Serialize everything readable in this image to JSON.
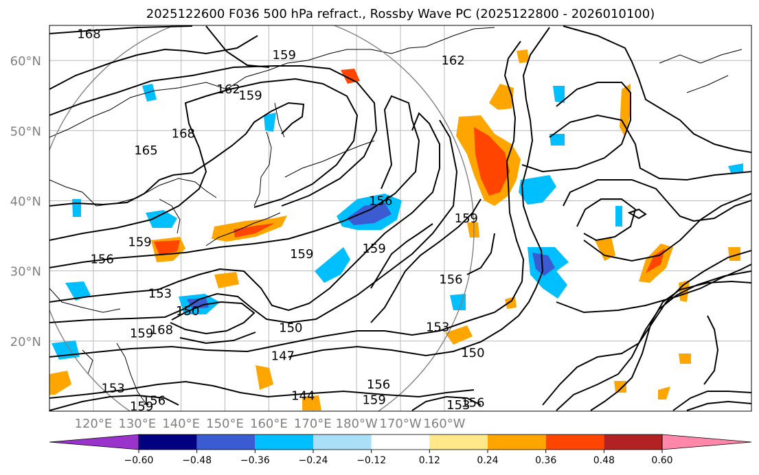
{
  "chart_data": {
    "type": "map-contour",
    "title": "2025122600 F036 500 hPa refract., Rossby Wave PC (2025122800 - 2026010100)",
    "lon_range": [
      110,
      270
    ],
    "lat_range": [
      10,
      65
    ],
    "lat_ticks": [
      {
        "value": 20,
        "label": "20°N"
      },
      {
        "value": 30,
        "label": "30°N"
      },
      {
        "value": 40,
        "label": "40°N"
      },
      {
        "value": 50,
        "label": "50°N"
      },
      {
        "value": 60,
        "label": "60°N"
      }
    ],
    "lon_ticks": [
      {
        "value": 120,
        "label": "120°E"
      },
      {
        "value": 130,
        "label": "130°E"
      },
      {
        "value": 140,
        "label": "140°E"
      },
      {
        "value": 150,
        "label": "150°E"
      },
      {
        "value": 160,
        "label": "160°E"
      },
      {
        "value": 170,
        "label": "170°E"
      },
      {
        "value": 180,
        "label": "180°W"
      },
      {
        "value": 190,
        "label": "170°W"
      },
      {
        "value": 200,
        "label": "160°W"
      }
    ],
    "grid": true,
    "colorbar": {
      "levels": [
        "−0.60",
        "−0.48",
        "−0.36",
        "−0.24",
        "−0.12",
        "0.12",
        "0.24",
        "0.36",
        "0.48",
        "0.60"
      ],
      "colors": [
        "#9933cc",
        "#000080",
        "#3a5bd1",
        "#00bfff",
        "#aadff8",
        "#ffffff",
        "#ffe88a",
        "#ffa500",
        "#ff4500",
        "#b22222",
        "#ff88aa"
      ]
    },
    "contour_labels": [
      {
        "text": "168",
        "lon": 119,
        "lat": 63.8
      },
      {
        "text": "162",
        "lon": 150.8,
        "lat": 55.9
      },
      {
        "text": "159",
        "lon": 155.8,
        "lat": 55.0
      },
      {
        "text": "159",
        "lon": 163.5,
        "lat": 60.8
      },
      {
        "text": "162",
        "lon": 202,
        "lat": 60.0
      },
      {
        "text": "168",
        "lon": 140.5,
        "lat": 49.6
      },
      {
        "text": "165",
        "lon": 132,
        "lat": 47.2
      },
      {
        "text": "156",
        "lon": 185.5,
        "lat": 40.0
      },
      {
        "text": "159",
        "lon": 205,
        "lat": 37.5
      },
      {
        "text": "159",
        "lon": 130.6,
        "lat": 34.1
      },
      {
        "text": "156",
        "lon": 122,
        "lat": 31.7
      },
      {
        "text": "159",
        "lon": 167.5,
        "lat": 32.4
      },
      {
        "text": "159",
        "lon": 184,
        "lat": 33.2
      },
      {
        "text": "153",
        "lon": 135.2,
        "lat": 26.8
      },
      {
        "text": "150",
        "lon": 141.5,
        "lat": 24.3
      },
      {
        "text": "159",
        "lon": 131,
        "lat": 21.1
      },
      {
        "text": "168",
        "lon": 135.5,
        "lat": 21.6
      },
      {
        "text": "150",
        "lon": 165,
        "lat": 21.9
      },
      {
        "text": "153",
        "lon": 198.5,
        "lat": 22.0
      },
      {
        "text": "156",
        "lon": 201.5,
        "lat": 28.8
      },
      {
        "text": "150",
        "lon": 206.5,
        "lat": 18.3
      },
      {
        "text": "147",
        "lon": 163.2,
        "lat": 17.9
      },
      {
        "text": "144",
        "lon": 167.8,
        "lat": 12.2
      },
      {
        "text": "156",
        "lon": 185,
        "lat": 13.8
      },
      {
        "text": "159",
        "lon": 184,
        "lat": 11.6
      },
      {
        "text": "156",
        "lon": 133.8,
        "lat": 11.5
      },
      {
        "text": "159",
        "lon": 131,
        "lat": 10.7
      },
      {
        "text": "153",
        "lon": 124.5,
        "lat": 13.3
      },
      {
        "text": "153",
        "lon": 203.2,
        "lat": 10.9
      },
      {
        "text": "156",
        "lon": 206.5,
        "lat": 11.2
      }
    ]
  }
}
